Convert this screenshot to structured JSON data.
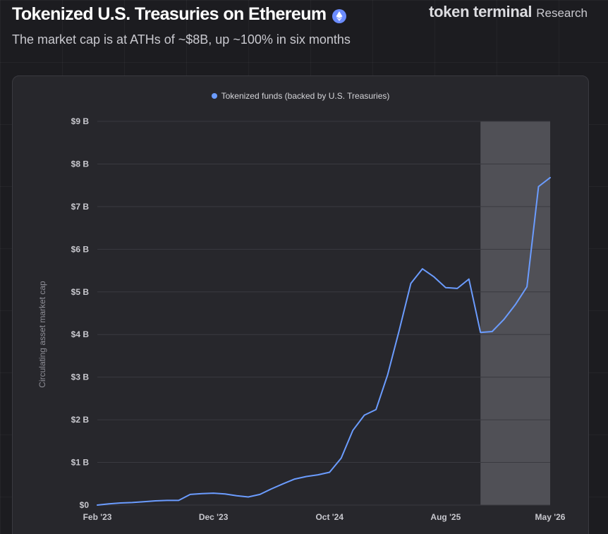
{
  "header": {
    "title": "Tokenized U.S. Treasuries on Ethereum",
    "subtitle": "The market cap is at ATHs of ~$8B, up ~100% in six months",
    "brand_name": "token terminal",
    "brand_suffix": "Research",
    "badge_icon": "ethereum-icon"
  },
  "colors": {
    "series": "#6b9cff",
    "highlight": "#505056",
    "grid": "#3a3a40",
    "badge": "#6b8cff"
  },
  "chart_data": {
    "type": "line",
    "title": "",
    "xlabel": "",
    "ylabel": "Circulating asset market cap",
    "ylim": [
      0,
      9
    ],
    "y_unit": "B",
    "y_ticks": [
      {
        "value": 0,
        "label": "$0"
      },
      {
        "value": 1,
        "label": "$1 B"
      },
      {
        "value": 2,
        "label": "$2 B"
      },
      {
        "value": 3,
        "label": "$3 B"
      },
      {
        "value": 4,
        "label": "$4 B"
      },
      {
        "value": 5,
        "label": "$5 B"
      },
      {
        "value": 6,
        "label": "$6 B"
      },
      {
        "value": 7,
        "label": "$7 B"
      },
      {
        "value": 8,
        "label": "$8 B"
      },
      {
        "value": 9,
        "label": "$9 B"
      }
    ],
    "x_range": [
      "2023-02",
      "2026-05"
    ],
    "x_ticks": [
      {
        "date": "2023-02",
        "label": "Feb '23"
      },
      {
        "date": "2023-12",
        "label": "Dec '23"
      },
      {
        "date": "2024-10",
        "label": "Oct '24"
      },
      {
        "date": "2025-08",
        "label": "Aug '25"
      },
      {
        "date": "2026-05",
        "label": "May '26"
      }
    ],
    "grid": true,
    "legend_position": "top-center",
    "highlight_range": [
      "2025-11",
      "2026-05"
    ],
    "series": [
      {
        "name": "Tokenized funds (backed by U.S. Treasuries)",
        "points": [
          {
            "date": "2023-02",
            "value": 0.0
          },
          {
            "date": "2023-03",
            "value": 0.03
          },
          {
            "date": "2023-04",
            "value": 0.05
          },
          {
            "date": "2023-05",
            "value": 0.06
          },
          {
            "date": "2023-06",
            "value": 0.08
          },
          {
            "date": "2023-07",
            "value": 0.1
          },
          {
            "date": "2023-08",
            "value": 0.11
          },
          {
            "date": "2023-09",
            "value": 0.11
          },
          {
            "date": "2023-10",
            "value": 0.25
          },
          {
            "date": "2023-11",
            "value": 0.27
          },
          {
            "date": "2023-12",
            "value": 0.28
          },
          {
            "date": "2024-01",
            "value": 0.26
          },
          {
            "date": "2024-02",
            "value": 0.22
          },
          {
            "date": "2024-03",
            "value": 0.19
          },
          {
            "date": "2024-04",
            "value": 0.25
          },
          {
            "date": "2024-05",
            "value": 0.38
          },
          {
            "date": "2024-06",
            "value": 0.5
          },
          {
            "date": "2024-07",
            "value": 0.61
          },
          {
            "date": "2024-08",
            "value": 0.67
          },
          {
            "date": "2024-09",
            "value": 0.71
          },
          {
            "date": "2024-10",
            "value": 0.77
          },
          {
            "date": "2024-11",
            "value": 1.1
          },
          {
            "date": "2024-12",
            "value": 1.75
          },
          {
            "date": "2025-01",
            "value": 2.11
          },
          {
            "date": "2025-02",
            "value": 2.24
          },
          {
            "date": "2025-03",
            "value": 3.05
          },
          {
            "date": "2025-04",
            "value": 4.1
          },
          {
            "date": "2025-05",
            "value": 5.2
          },
          {
            "date": "2025-06",
            "value": 5.54
          },
          {
            "date": "2025-07",
            "value": 5.35
          },
          {
            "date": "2025-08",
            "value": 5.1
          },
          {
            "date": "2025-09",
            "value": 5.08
          },
          {
            "date": "2025-10",
            "value": 5.3
          },
          {
            "date": "2025-11",
            "value": 4.05
          },
          {
            "date": "2025-12",
            "value": 4.07
          },
          {
            "date": "2026-01",
            "value": 4.35
          },
          {
            "date": "2026-02",
            "value": 4.7
          },
          {
            "date": "2026-03",
            "value": 5.12
          },
          {
            "date": "2026-04",
            "value": 7.47
          },
          {
            "date": "2026-05",
            "value": 7.68
          }
        ]
      }
    ]
  }
}
